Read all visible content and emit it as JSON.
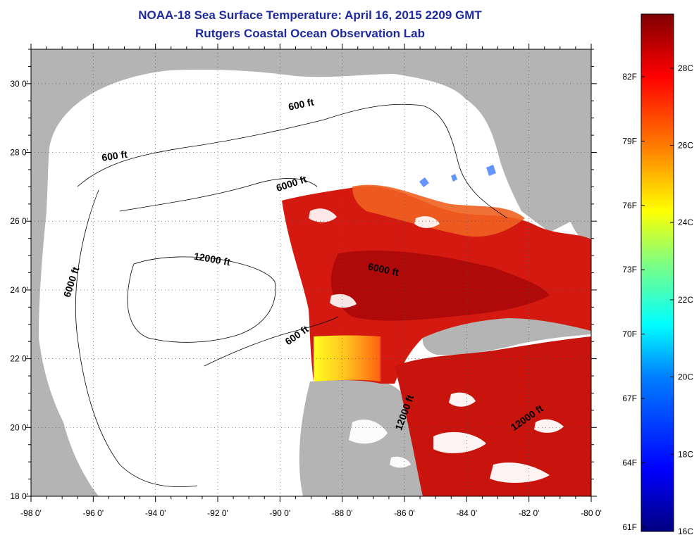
{
  "header": {
    "title_line1": "NOAA-18 Sea Surface Temperature:  April 16, 2015 2209 GMT",
    "title_line2": "Rutgers Coastal Ocean Observation Lab"
  },
  "map": {
    "lon_range": [
      -98,
      -80
    ],
    "lat_range": [
      18,
      31
    ],
    "lon_ticks": [
      {
        "v": -98,
        "label": "-98 0'"
      },
      {
        "v": -96,
        "label": "-96 0'"
      },
      {
        "v": -94,
        "label": "-94 0'"
      },
      {
        "v": -92,
        "label": "-92 0'"
      },
      {
        "v": -90,
        "label": "-90 0'"
      },
      {
        "v": -88,
        "label": "-88 0'"
      },
      {
        "v": -86,
        "label": "-86 0'"
      },
      {
        "v": -84,
        "label": "-84 0'"
      },
      {
        "v": -82,
        "label": "-82 0'"
      },
      {
        "v": -80,
        "label": "-80 0'"
      }
    ],
    "lat_ticks": [
      {
        "v": 18,
        "label": "18 0'"
      },
      {
        "v": 20,
        "label": "20 0'"
      },
      {
        "v": 22,
        "label": "22 0'"
      },
      {
        "v": 24,
        "label": "24 0'"
      },
      {
        "v": 26,
        "label": "26 0'"
      },
      {
        "v": 28,
        "label": "28 0'"
      },
      {
        "v": 30,
        "label": "30 0'"
      }
    ],
    "contour_labels": [
      {
        "text": "600 ft",
        "lon": -89.3,
        "lat": 29.3,
        "angle": -12
      },
      {
        "text": "600 ft",
        "lon": -95.3,
        "lat": 27.8,
        "angle": -8
      },
      {
        "text": "6000 ft",
        "lon": -89.6,
        "lat": 27.0,
        "angle": -18
      },
      {
        "text": "6000 ft",
        "lon": -96.6,
        "lat": 24.2,
        "angle": -72
      },
      {
        "text": "12000 ft",
        "lon": -92.2,
        "lat": 24.8,
        "angle": 10
      },
      {
        "text": "6000 ft",
        "lon": -86.7,
        "lat": 24.5,
        "angle": 12
      },
      {
        "text": "600 ft",
        "lon": -89.4,
        "lat": 22.6,
        "angle": -35
      },
      {
        "text": "12000 ft",
        "lon": -85.9,
        "lat": 20.4,
        "angle": -70
      },
      {
        "text": "12000 ft",
        "lon": -82.0,
        "lat": 20.2,
        "angle": -35
      }
    ],
    "colors": {
      "land": "#b4b4b4",
      "ocean_nodata": "#ffffff"
    }
  },
  "colorbar": {
    "labels_f": [
      {
        "t": "82F",
        "v": 82
      },
      {
        "t": "79F",
        "v": 79
      },
      {
        "t": "76F",
        "v": 76
      },
      {
        "t": "73F",
        "v": 73
      },
      {
        "t": "70F",
        "v": 70
      },
      {
        "t": "67F",
        "v": 67
      },
      {
        "t": "64F",
        "v": 64
      },
      {
        "t": "61F",
        "v": 61
      }
    ],
    "labels_c": [
      {
        "t": "28C",
        "v": 28
      },
      {
        "t": "26C",
        "v": 26
      },
      {
        "t": "24C",
        "v": 24
      },
      {
        "t": "22C",
        "v": 22
      },
      {
        "t": "20C",
        "v": 20
      },
      {
        "t": "18C",
        "v": 18
      },
      {
        "t": "16C",
        "v": 16
      }
    ],
    "range_c": [
      16,
      29.4
    ],
    "colors": [
      "#00007f",
      "#0000ff",
      "#0080ff",
      "#00ffff",
      "#80ff80",
      "#ffff00",
      "#ff8000",
      "#ff0000",
      "#7f0000"
    ]
  }
}
